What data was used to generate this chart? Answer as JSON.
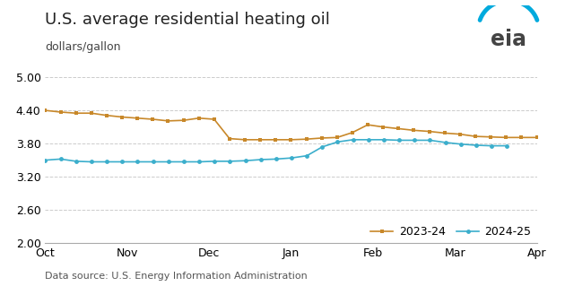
{
  "title": "U.S. average residential heating oil",
  "ylabel": "dollars/gallon",
  "datasource": "Data source: U.S. Energy Information Administration",
  "ylim": [
    2.0,
    5.0
  ],
  "yticks": [
    2.0,
    2.6,
    3.2,
    3.8,
    4.4,
    5.0
  ],
  "x_labels": [
    "Oct",
    "Nov",
    "Dec",
    "Jan",
    "Feb",
    "Mar",
    "Apr"
  ],
  "month_ticks": [
    0,
    4.33,
    8.67,
    13.0,
    17.33,
    21.67,
    26.0
  ],
  "xlim": [
    0,
    26
  ],
  "series_2023_24": {
    "label": "2023-24",
    "color": "#C8882A",
    "marker": "s",
    "y": [
      4.4,
      4.37,
      4.35,
      4.35,
      4.31,
      4.28,
      4.26,
      4.24,
      4.21,
      4.22,
      4.26,
      4.24,
      3.89,
      3.87,
      3.87,
      3.87,
      3.87,
      3.88,
      3.9,
      3.91,
      4.0,
      4.14,
      4.1,
      4.07,
      4.04,
      4.02,
      3.99,
      3.97,
      3.93,
      3.92,
      3.91,
      3.91,
      3.91
    ]
  },
  "series_2024_25": {
    "label": "2024-25",
    "color": "#3BAECC",
    "marker": "o",
    "y": [
      3.5,
      3.52,
      3.48,
      3.47,
      3.47,
      3.47,
      3.47,
      3.47,
      3.47,
      3.47,
      3.47,
      3.48,
      3.48,
      3.49,
      3.51,
      3.52,
      3.54,
      3.58,
      3.74,
      3.83,
      3.87,
      3.87,
      3.87,
      3.86,
      3.86,
      3.86,
      3.82,
      3.79,
      3.77,
      3.76,
      3.76
    ]
  },
  "background_color": "#FFFFFF",
  "grid_color": "#CCCCCC",
  "title_fontsize": 13,
  "sublabel_fontsize": 9,
  "tick_fontsize": 9,
  "legend_fontsize": 9,
  "datasource_fontsize": 8
}
